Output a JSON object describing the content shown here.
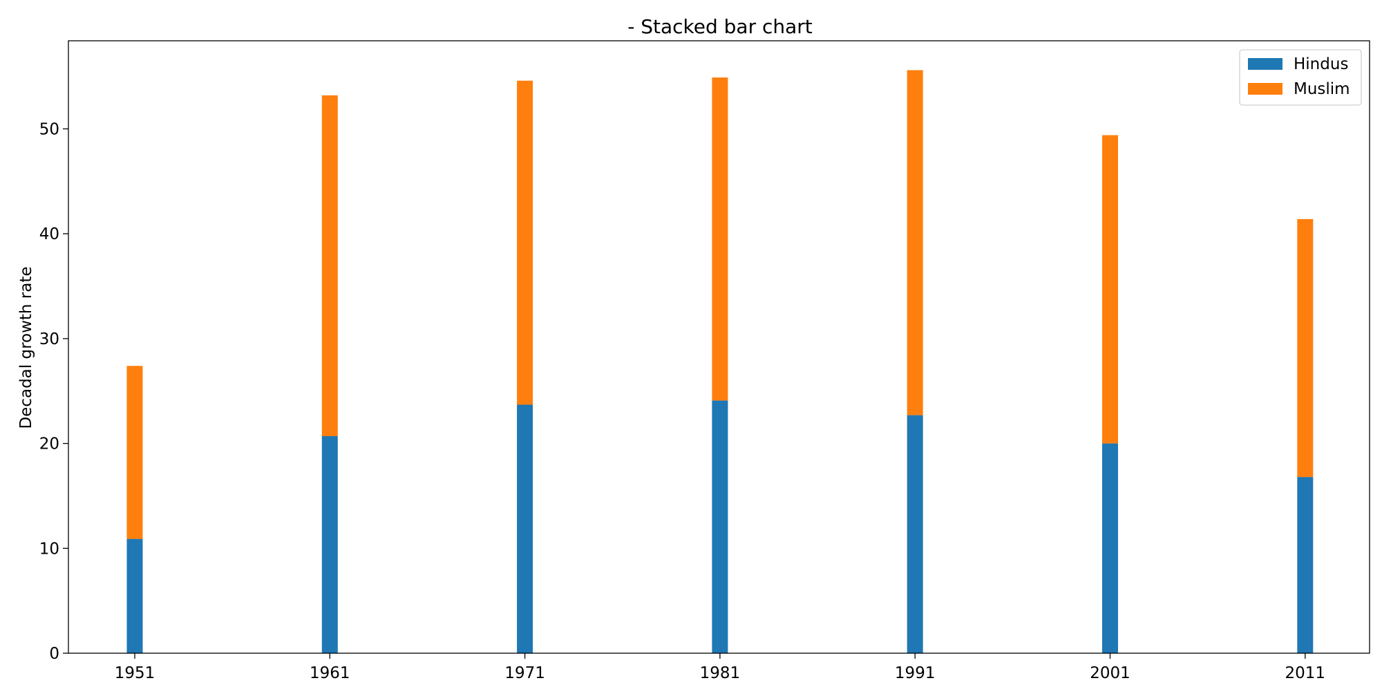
{
  "chart_data": {
    "type": "bar",
    "stacked": true,
    "title": "- Stacked bar chart",
    "xlabel": "",
    "ylabel": "Decadal growth rate",
    "categories": [
      "1951",
      "1961",
      "1971",
      "1981",
      "1991",
      "2001",
      "2011"
    ],
    "series": [
      {
        "name": "Hindus",
        "color": "#1f77b4",
        "values": [
          10.9,
          20.7,
          23.7,
          24.1,
          22.7,
          20.0,
          16.8
        ]
      },
      {
        "name": "Muslim",
        "color": "#ff7f0e",
        "values": [
          16.5,
          32.5,
          30.9,
          30.8,
          32.9,
          29.4,
          24.6
        ]
      }
    ],
    "ylim": [
      0,
      58.4
    ],
    "yticks": [
      0,
      10,
      20,
      30,
      40,
      50
    ],
    "grid": false,
    "legend_position": "top-right"
  }
}
